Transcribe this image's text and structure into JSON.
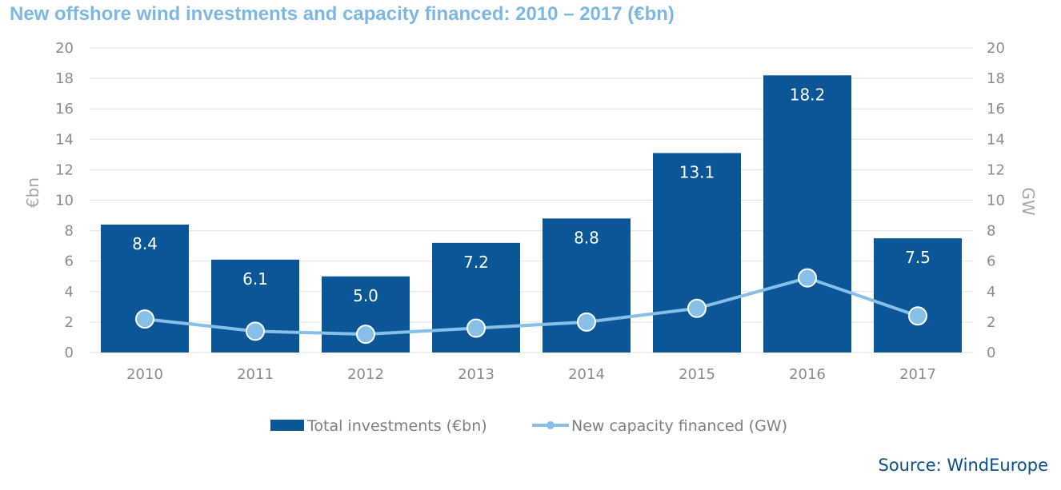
{
  "title": "New offshore wind investments and capacity financed: 2010 – 2017 (€bn)",
  "source": "Source: WindEurope",
  "colors": {
    "bars": "#0a5697",
    "line": "#86bfe8",
    "grid": "#e3e3e3",
    "title": "#7db8e3",
    "source": "#0a4f8c"
  },
  "chart_data": {
    "type": "bar",
    "title": "New offshore wind investments and capacity financed: 2010 – 2017 (€bn)",
    "categories": [
      "2010",
      "2011",
      "2012",
      "2013",
      "2014",
      "2015",
      "2016",
      "2017"
    ],
    "ylabel_left": "€bn",
    "ylabel_right": "GW",
    "ylim_left": [
      0,
      20
    ],
    "ylim_right": [
      0,
      20
    ],
    "yticks": [
      "0",
      "2",
      "4",
      "6",
      "8",
      "10",
      "12",
      "14",
      "16",
      "18",
      "20"
    ],
    "grid": true,
    "legend_position": "bottom",
    "series": [
      {
        "name": "Total investments (€bn)",
        "type": "bar",
        "axis": "left",
        "values": [
          8.4,
          6.1,
          5.0,
          7.2,
          8.8,
          13.1,
          18.2,
          7.5
        ],
        "labels": [
          "8.4",
          "6.1",
          "5.0",
          "7.2",
          "8.8",
          "13.1",
          "18.2",
          "7.5"
        ]
      },
      {
        "name": "New capacity financed (GW)",
        "type": "line",
        "axis": "right",
        "values": [
          2.2,
          1.4,
          1.2,
          1.6,
          2.0,
          2.9,
          4.9,
          2.4
        ]
      }
    ]
  }
}
